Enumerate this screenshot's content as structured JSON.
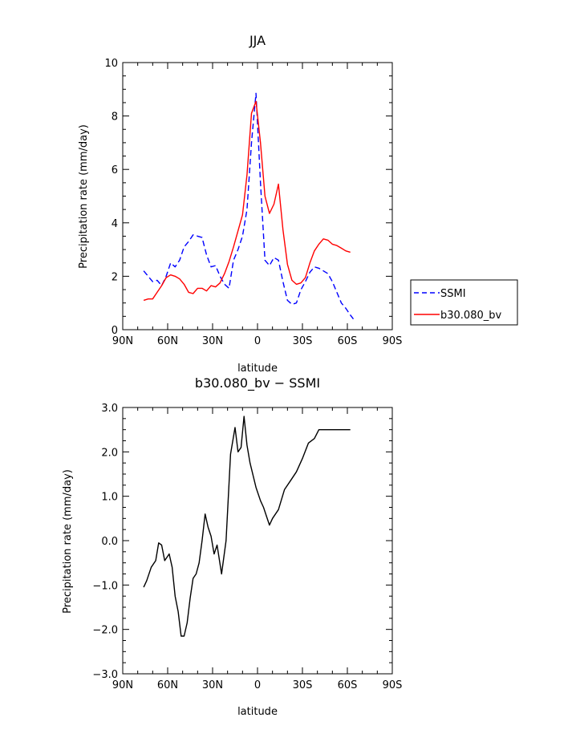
{
  "chart_data": [
    {
      "type": "line",
      "title": "JJA",
      "xlabel": "latitude",
      "ylabel": "Precipitation rate (mm/day)",
      "xlim": [
        90,
        -90
      ],
      "ylim": [
        0,
        10
      ],
      "xticks": [
        90,
        60,
        30,
        0,
        -30,
        -60,
        -90
      ],
      "xtick_labels": [
        "90N",
        "60N",
        "30N",
        "0",
        "30S",
        "60S",
        "90S"
      ],
      "yticks": [
        0,
        2,
        4,
        6,
        8,
        10
      ],
      "ytick_labels": [
        "0",
        "2",
        "4",
        "6",
        "8",
        "10"
      ],
      "grid": false,
      "legend_position": "right",
      "series": [
        {
          "name": "SSMI",
          "color": "#0000ff",
          "dash": "dashed",
          "x": [
            76,
            73,
            70,
            67,
            64,
            61,
            58,
            55,
            52,
            49,
            46,
            43,
            40,
            37,
            34,
            31,
            28,
            25,
            22,
            19,
            16,
            13,
            10,
            7,
            4,
            1,
            -2,
            -5,
            -8,
            -11,
            -14,
            -17,
            -20,
            -23,
            -26,
            -29,
            -32,
            -35,
            -38,
            -41,
            -44,
            -47,
            -50,
            -53,
            -56,
            -59,
            -62,
            -64
          ],
          "values": [
            2.2,
            2.0,
            1.8,
            1.85,
            1.65,
            2.0,
            2.5,
            2.35,
            2.6,
            3.1,
            3.3,
            3.55,
            3.5,
            3.45,
            2.8,
            2.35,
            2.4,
            2.0,
            1.7,
            1.55,
            2.6,
            3.0,
            3.5,
            4.5,
            7.0,
            8.85,
            5.5,
            2.6,
            2.4,
            2.7,
            2.6,
            1.8,
            1.1,
            0.95,
            1.0,
            1.5,
            1.8,
            2.15,
            2.35,
            2.3,
            2.2,
            2.1,
            1.8,
            1.4,
            1.0,
            0.8,
            0.55,
            0.4
          ]
        },
        {
          "name": "b30.080_bv",
          "color": "#ff0000",
          "dash": "solid",
          "x": [
            76,
            73,
            70,
            67,
            64,
            61,
            58,
            55,
            52,
            49,
            46,
            43,
            40,
            37,
            34,
            31,
            28,
            25,
            22,
            19,
            16,
            13,
            10,
            7,
            4,
            1,
            -2,
            -5,
            -8,
            -11,
            -14,
            -17,
            -20,
            -23,
            -26,
            -29,
            -32,
            -35,
            -38,
            -41,
            -44,
            -47,
            -50,
            -53,
            -56,
            -59,
            -62
          ],
          "values": [
            1.1,
            1.15,
            1.15,
            1.4,
            1.65,
            1.95,
            2.05,
            2.0,
            1.9,
            1.7,
            1.4,
            1.35,
            1.55,
            1.55,
            1.45,
            1.65,
            1.6,
            1.75,
            2.1,
            2.55,
            3.1,
            3.7,
            4.3,
            5.8,
            8.1,
            8.55,
            7.0,
            5.0,
            4.35,
            4.7,
            5.45,
            3.75,
            2.45,
            1.85,
            1.7,
            1.75,
            1.95,
            2.5,
            2.95,
            3.2,
            3.4,
            3.35,
            3.2,
            3.15,
            3.05,
            2.95,
            2.9
          ]
        }
      ]
    },
    {
      "type": "line",
      "title": "b30.080_bv − SSMI",
      "xlabel": "latitude",
      "ylabel": "Precipitation rate (mm/day)",
      "xlim": [
        90,
        -90
      ],
      "ylim": [
        -3.0,
        3.0
      ],
      "xticks": [
        90,
        60,
        30,
        0,
        -30,
        -60,
        -90
      ],
      "xtick_labels": [
        "90N",
        "60N",
        "30N",
        "0",
        "30S",
        "60S",
        "90S"
      ],
      "yticks": [
        -3.0,
        -2.0,
        -1.0,
        0.0,
        1.0,
        2.0,
        3.0
      ],
      "ytick_labels": [
        "−3.0",
        "−2.0",
        "−1.0",
        "0.0",
        "1.0",
        "2.0",
        "3.0"
      ],
      "grid": false,
      "series": [
        {
          "color": "#000000",
          "dash": "solid",
          "x": [
            76,
            74,
            71,
            68,
            66,
            64,
            62,
            59,
            57,
            55,
            53,
            51,
            49,
            47,
            45,
            43,
            41,
            39,
            37,
            35,
            33,
            31,
            29,
            27,
            24,
            21,
            18,
            15,
            13,
            11,
            9,
            7,
            5,
            1,
            -2,
            -4,
            -6,
            -8,
            -10,
            -14,
            -18,
            -22,
            -26,
            -30,
            -34,
            -38,
            -41,
            -44,
            -47,
            -50,
            -54,
            -58,
            -62
          ],
          "values": [
            -1.05,
            -0.9,
            -0.6,
            -0.45,
            -0.05,
            -0.1,
            -0.45,
            -0.3,
            -0.6,
            -1.25,
            -1.6,
            -2.15,
            -2.15,
            -1.85,
            -1.3,
            -0.85,
            -0.75,
            -0.5,
            0.0,
            0.6,
            0.3,
            0.1,
            -0.3,
            -0.1,
            -0.75,
            0.0,
            1.95,
            2.55,
            2.0,
            2.1,
            2.8,
            2.15,
            1.75,
            1.2,
            0.9,
            0.75,
            0.55,
            0.35,
            0.5,
            0.7,
            1.15,
            1.35,
            1.55,
            1.85,
            2.2,
            2.3,
            2.5,
            2.5,
            2.5,
            2.5,
            2.5,
            2.5,
            2.5
          ]
        }
      ]
    }
  ]
}
